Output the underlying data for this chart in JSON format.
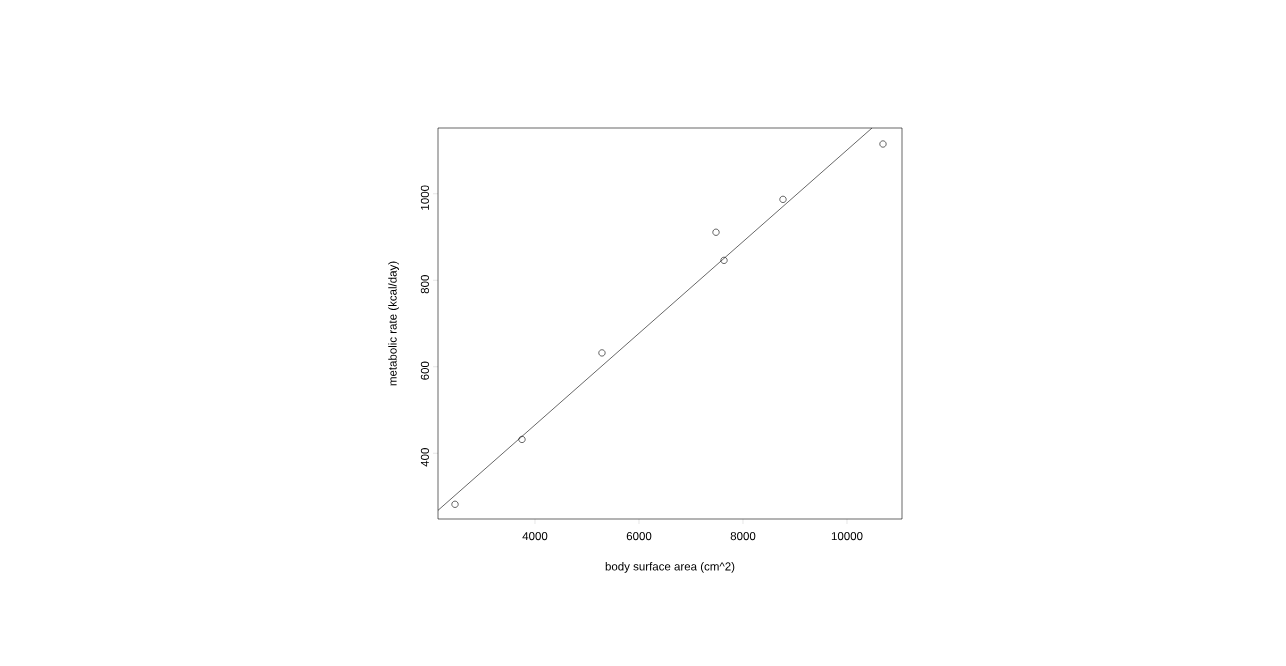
{
  "chart_data": {
    "type": "scatter",
    "xlabel": "body surface area (cm^2)",
    "ylabel": "metabolic rate (kcal/day)",
    "xlim": [
      2135,
      11058
    ],
    "ylim": [
      248,
      1152
    ],
    "xticks": [
      4000,
      6000,
      8000,
      10000
    ],
    "yticks": [
      400,
      600,
      800,
      1000
    ],
    "marker": "circle",
    "series": [
      {
        "color": "#000000",
        "x": [
          2462,
          3750,
          5288,
          7481,
          7635,
          8769,
          10692
        ],
        "values": [
          282,
          432,
          632,
          911,
          846,
          987,
          1115
        ]
      },
      {
        "type": "line",
        "marker": "none",
        "color": "#000000",
        "x": [
          2135,
          10481
        ],
        "values": [
          268,
          1152
        ]
      }
    ]
  }
}
